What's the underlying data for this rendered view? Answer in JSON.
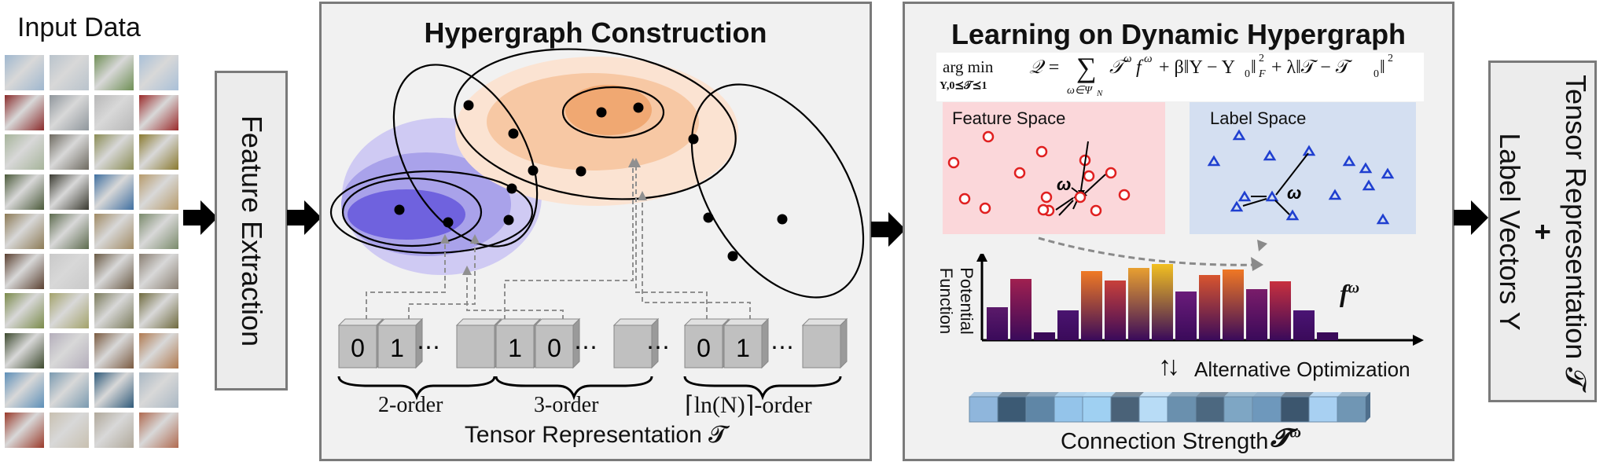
{
  "input": {
    "title": "Input Data",
    "thumb_rows": [
      [
        "#9fb7cf",
        "#b9c3cc",
        "#6f8f55",
        "#a9c0d8"
      ],
      [
        "#8a2b2b",
        "#8f969c",
        "#b8b8b8",
        "#9b2a2a"
      ],
      [
        "#a6b49a",
        "#6e6a60",
        "#8a8c54",
        "#8a7a30"
      ],
      [
        "#4b5a3a",
        "#3a3a30",
        "#3f6fa0",
        "#b79b6b"
      ],
      [
        "#8c7a55",
        "#5d6b4e",
        "#a08a63",
        "#7a8a6b"
      ],
      [
        "#5a4030",
        "#c9c9c9",
        "#6a5a45",
        "#8a7f72"
      ],
      [
        "#7a8a4a",
        "#a3a26a",
        "#7a7a5a",
        "#6f6a3e"
      ],
      [
        "#3d4a2e",
        "#b4aebb",
        "#7a5a40",
        "#b07a50"
      ],
      [
        "#5d8fb8",
        "#7a9ab0",
        "#2f5a7a",
        "#aab8c4"
      ],
      [
        "#9a3a2a",
        "#c8c0b0",
        "#b0a89a",
        "#b06a50"
      ]
    ]
  },
  "feature_extraction": {
    "label": "Feature Extraction"
  },
  "hypergraph": {
    "title": "Hypergraph Construction",
    "cubes": [
      "0",
      "1",
      "",
      "1",
      "0",
      "",
      "0",
      "1",
      ""
    ],
    "dots": [
      "⋯",
      "⋯",
      "⋯",
      "⋯"
    ],
    "groups": [
      "2-order",
      "3-order",
      "⌈ln(N)⌉-order"
    ],
    "tensor_label": "Tensor Representation 𝓣"
  },
  "learning": {
    "title": "Learning on Dynamic Hypergraph",
    "formula": {
      "argmin": "arg min",
      "argmin_sub": "Y,0⪯𝒯⪯1",
      "body_a": "𝒬 =",
      "sum": "∑",
      "sum_sub": "ω∈Ψ",
      "sum_sub_n": "N",
      "body_b": "𝒯",
      "body_b_sup": "ω",
      "body_c": "f",
      "body_c_sup": "ω",
      "body_d": " + β‖Y − Y",
      "body_d_sub": "0",
      "body_e": "‖",
      "body_e_sup": "2",
      "body_e_sub": "F",
      "body_f": " + λ‖𝒯 − 𝒯",
      "body_f_sub": "0",
      "body_g": "‖",
      "body_g_sup": "2"
    },
    "feature_space": "Feature Space",
    "label_space": "Label Space",
    "omega": "ω",
    "potential_label": "Potential Function",
    "f_omega": "f",
    "f_omega_sup": "ω",
    "alt_opt": "Alternative Optimization",
    "alt_arrows": "↑↓",
    "connection_label": "Connection Strength",
    "t_omega": "𝓣",
    "t_omega_sup": "ω",
    "potential_bars": [
      0.42,
      0.78,
      0.1,
      0.38,
      0.88,
      0.76,
      0.92,
      0.97,
      0.62,
      0.83,
      0.9,
      0.65,
      0.75,
      0.38,
      0.1
    ],
    "bar_colors": [
      "#5b1a6a",
      "#a02050",
      "#3a0a58",
      "#4a1470",
      "#f07a24",
      "#c8403a",
      "#e8a030",
      "#f2c020",
      "#6a1c7a",
      "#d8552e",
      "#f07824",
      "#7a1c6a",
      "#c8303e",
      "#4a1474",
      "#3a0a58"
    ],
    "strength_colors": [
      "#8fb6dc",
      "#3c5a74",
      "#5f86a6",
      "#94c4ea",
      "#9fd0f2",
      "#4a6278",
      "#b8dcf6",
      "#6a90ae",
      "#4c6880",
      "#7ea6c4",
      "#6e98bc",
      "#3c566e",
      "#a8d0f2",
      "#7096b4"
    ]
  },
  "output": {
    "line1": "Tensor Representation 𝓣",
    "plus": "+",
    "line2": "Label Vectors Y"
  },
  "colors": {
    "panel_border": "#7a7a7a",
    "panel_bg": "#f1f1f1",
    "feature_bg": "#fbd7da",
    "label_bg": "#d4dff1",
    "feature_marker": "#e02020",
    "label_marker": "#1f3fd0",
    "cube_face": "#c0c0c0"
  }
}
